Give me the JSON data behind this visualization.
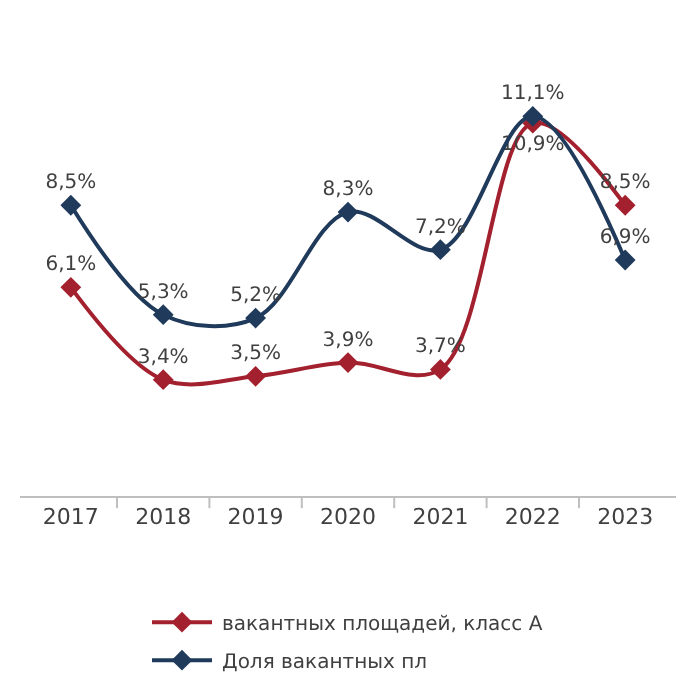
{
  "chart_data": {
    "type": "line",
    "categories": [
      "2017",
      "2018",
      "2019",
      "2020",
      "2021",
      "2022",
      "2023"
    ],
    "series": [
      {
        "name": "вакантных площадей, класс А",
        "color": "#a3202e",
        "values": [
          6.1,
          3.4,
          3.5,
          3.9,
          3.7,
          10.9,
          8.5
        ],
        "value_labels": [
          "6,1%",
          "3,4%",
          "3,5%",
          "3,9%",
          "3,7%",
          "10,9%",
          "8,5%"
        ]
      },
      {
        "name": "Доля вакантных пл",
        "color": "#1f3a5a",
        "values": [
          8.5,
          5.3,
          5.2,
          8.3,
          7.2,
          11.1,
          6.9
        ],
        "value_labels": [
          "8,5%",
          "5,3%",
          "5,2%",
          "8,3%",
          "7,2%",
          "11,1%",
          "6,9%"
        ]
      }
    ],
    "marker": "diamond",
    "line_style": "solid",
    "legend": "bottom",
    "tick_labels": "x"
  }
}
